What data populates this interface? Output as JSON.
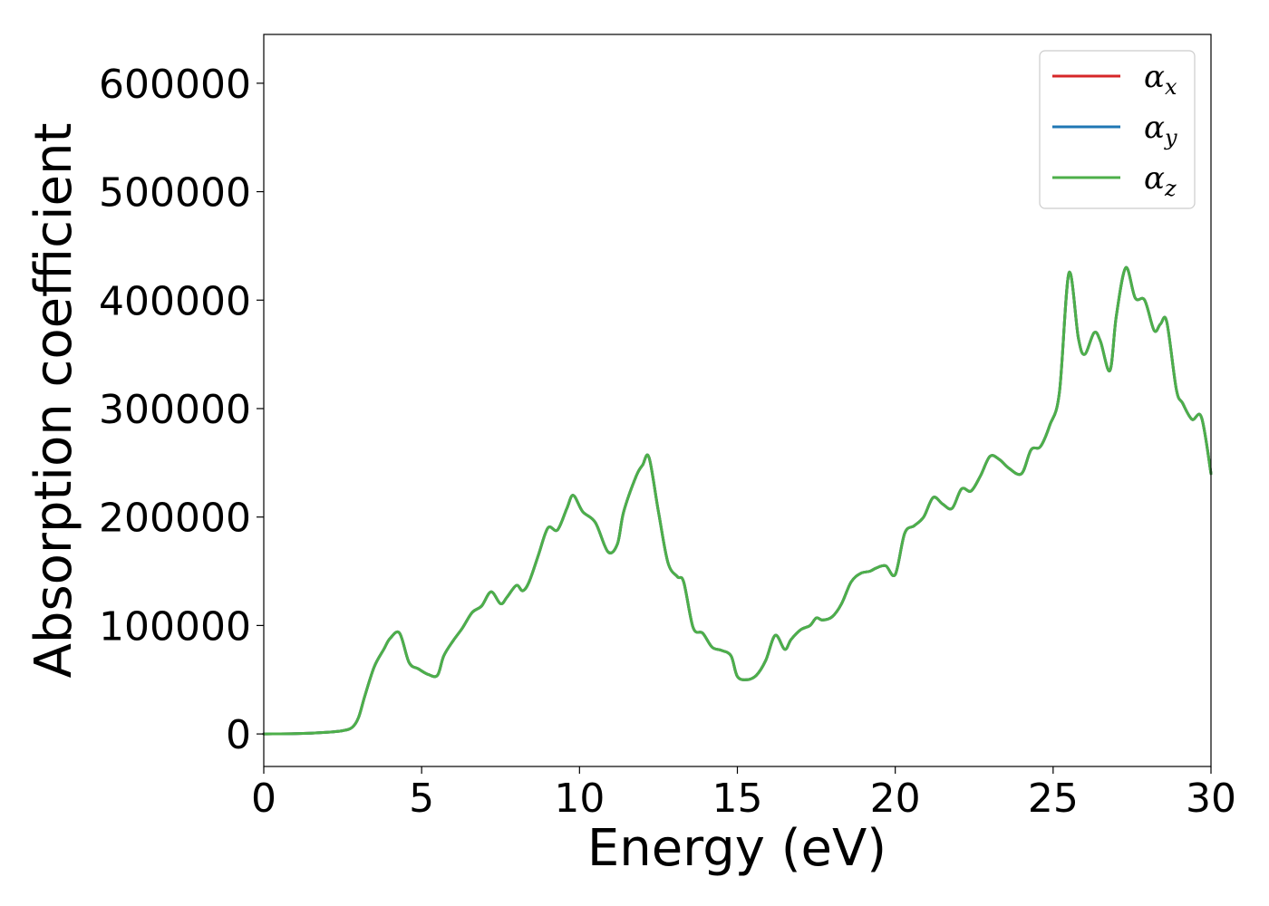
{
  "chart_data": {
    "type": "line",
    "title": "",
    "xlabel": "Energy (eV)",
    "ylabel": "Absorption coefficient",
    "xlim": [
      0,
      30
    ],
    "ylim": [
      -30000,
      645000
    ],
    "xticks": [
      0,
      5,
      10,
      15,
      20,
      25,
      30
    ],
    "yticks": [
      0,
      100000,
      200000,
      300000,
      400000,
      500000,
      600000
    ],
    "grid": false,
    "legend_position": "top-right",
    "colors": {
      "x": "#d62728",
      "y": "#1f77b4",
      "z": "#4daf4a"
    },
    "series": [
      {
        "key": "x",
        "name": "α",
        "sub": "x",
        "color": "#d62728"
      },
      {
        "key": "y",
        "name": "α",
        "sub": "y",
        "color": "#1f77b4"
      },
      {
        "key": "z",
        "name": "α",
        "sub": "z",
        "color": "#4daf4a"
      }
    ],
    "x": [
      0,
      1,
      2,
      2.5,
      2.8,
      3.0,
      3.2,
      3.5,
      3.8,
      4.0,
      4.3,
      4.6,
      4.9,
      5.2,
      5.5,
      5.7,
      6.0,
      6.3,
      6.6,
      6.9,
      7.2,
      7.5,
      7.7,
      8.0,
      8.2,
      8.4,
      8.7,
      9.0,
      9.3,
      9.6,
      9.8,
      10.1,
      10.5,
      10.9,
      11.2,
      11.4,
      11.8,
      12.0,
      12.2,
      12.5,
      12.8,
      13.1,
      13.3,
      13.6,
      13.9,
      14.2,
      14.5,
      14.8,
      15.0,
      15.3,
      15.6,
      15.9,
      16.2,
      16.5,
      16.7,
      17.0,
      17.3,
      17.5,
      17.7,
      18.0,
      18.3,
      18.6,
      18.9,
      19.2,
      19.4,
      19.7,
      20.0,
      20.3,
      20.6,
      20.9,
      21.2,
      21.5,
      21.8,
      22.1,
      22.4,
      22.7,
      23.0,
      23.3,
      23.6,
      24.0,
      24.3,
      24.6,
      24.9,
      25.2,
      25.5,
      25.8,
      26.0,
      26.3,
      26.5,
      26.8,
      27.0,
      27.3,
      27.6,
      27.9,
      28.2,
      28.4,
      28.6,
      28.9,
      29.1,
      29.4,
      29.7,
      30.0
    ],
    "values": [
      0,
      200,
      1500,
      3000,
      6000,
      15000,
      35000,
      62000,
      78000,
      88000,
      93000,
      66000,
      60000,
      55000,
      54000,
      72000,
      86000,
      98000,
      112000,
      118000,
      131000,
      120000,
      126000,
      137000,
      132000,
      140000,
      165000,
      190000,
      188000,
      208000,
      220000,
      205000,
      195000,
      168000,
      175000,
      205000,
      238000,
      248000,
      255000,
      205000,
      158000,
      145000,
      140000,
      98000,
      93000,
      80000,
      77000,
      72000,
      53000,
      50000,
      54000,
      68000,
      91000,
      78000,
      87000,
      96000,
      100000,
      107000,
      105000,
      108000,
      120000,
      140000,
      148000,
      150000,
      153000,
      155000,
      147000,
      185000,
      192000,
      200000,
      218000,
      212000,
      208000,
      226000,
      224000,
      238000,
      256000,
      253000,
      245000,
      240000,
      262000,
      265000,
      285000,
      315000,
      425000,
      365000,
      350000,
      370000,
      362000,
      335000,
      385000,
      430000,
      402000,
      400000,
      372000,
      378000,
      380000,
      318000,
      305000,
      290000,
      292000,
      240000
    ]
  }
}
